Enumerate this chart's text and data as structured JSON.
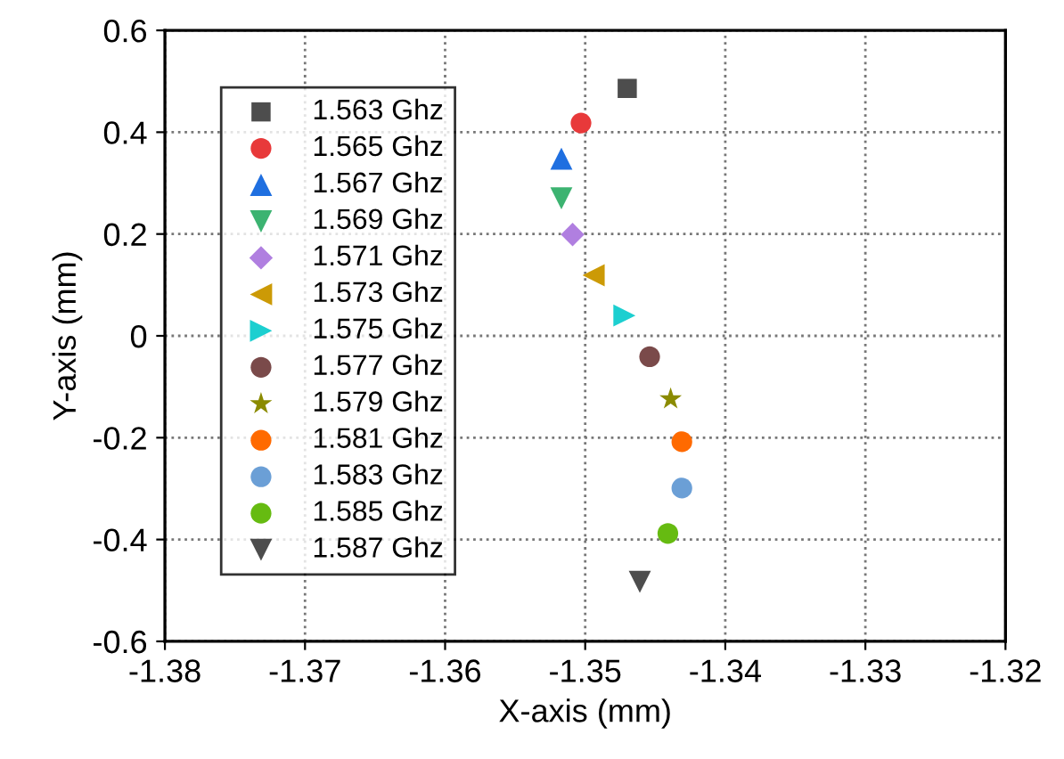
{
  "chart_data": {
    "type": "scatter",
    "xlabel": "X-axis (mm)",
    "ylabel": "Y-axis (mm)",
    "xlim": [
      -1.38,
      -1.32
    ],
    "xticks": [
      -1.38,
      -1.37,
      -1.36,
      -1.35,
      -1.34,
      -1.33,
      -1.32
    ],
    "ylim": [
      -0.6,
      0.6
    ],
    "yticks": [
      -0.6,
      -0.4,
      -0.2,
      0,
      0.2,
      0.4,
      0.6
    ],
    "grid": true,
    "legend": "top left",
    "series": [
      {
        "name": "1.563 Ghz",
        "color": "#4d4d4d",
        "marker": "square",
        "x": [
          -1.347
        ],
        "values": [
          0.486
        ]
      },
      {
        "name": "1.565 Ghz",
        "color": "#e8393a",
        "marker": "circle",
        "x": [
          -1.3503
        ],
        "values": [
          0.418
        ]
      },
      {
        "name": "1.567 Ghz",
        "color": "#1f6fe0",
        "marker": "triangle-up",
        "x": [
          -1.3517
        ],
        "values": [
          0.348
        ]
      },
      {
        "name": "1.569 Ghz",
        "color": "#3cb371",
        "marker": "triangle-down",
        "x": [
          -1.3517
        ],
        "values": [
          0.27
        ]
      },
      {
        "name": "1.571 Ghz",
        "color": "#b07fe0",
        "marker": "diamond",
        "x": [
          -1.3509
        ],
        "values": [
          0.199
        ]
      },
      {
        "name": "1.573 Ghz",
        "color": "#cc9a06",
        "marker": "triangle-left",
        "x": [
          -1.3494
        ],
        "values": [
          0.119
        ]
      },
      {
        "name": "1.575 Ghz",
        "color": "#1ccfd0",
        "marker": "triangle-right",
        "x": [
          -1.3472
        ],
        "values": [
          0.04
        ]
      },
      {
        "name": "1.577 Ghz",
        "color": "#7a4a4a",
        "x": [
          -1.3454
        ],
        "values": [
          -0.041
        ]
      },
      {
        "name": "1.579 Ghz",
        "color": "#8b8b00",
        "marker": "star",
        "x": [
          -1.3439
        ],
        "values": [
          -0.124
        ]
      },
      {
        "name": "1.581 Ghz",
        "color": "#ff6a00",
        "x": [
          -1.3431
        ],
        "values": [
          -0.208
        ]
      },
      {
        "name": "1.583 Ghz",
        "color": "#6b9fd6",
        "marker": "circle",
        "x": [
          -1.3431
        ],
        "values": [
          -0.299
        ]
      },
      {
        "name": "1.585 Ghz",
        "color": "#66bb11",
        "marker": "circle",
        "x": [
          -1.3441
        ],
        "values": [
          -0.388
        ]
      },
      {
        "name": "1.587 Ghz",
        "color": "#4d4d4d",
        "marker": "triangle-down",
        "x": [
          -1.3461
        ],
        "values": [
          -0.483
        ]
      }
    ]
  }
}
